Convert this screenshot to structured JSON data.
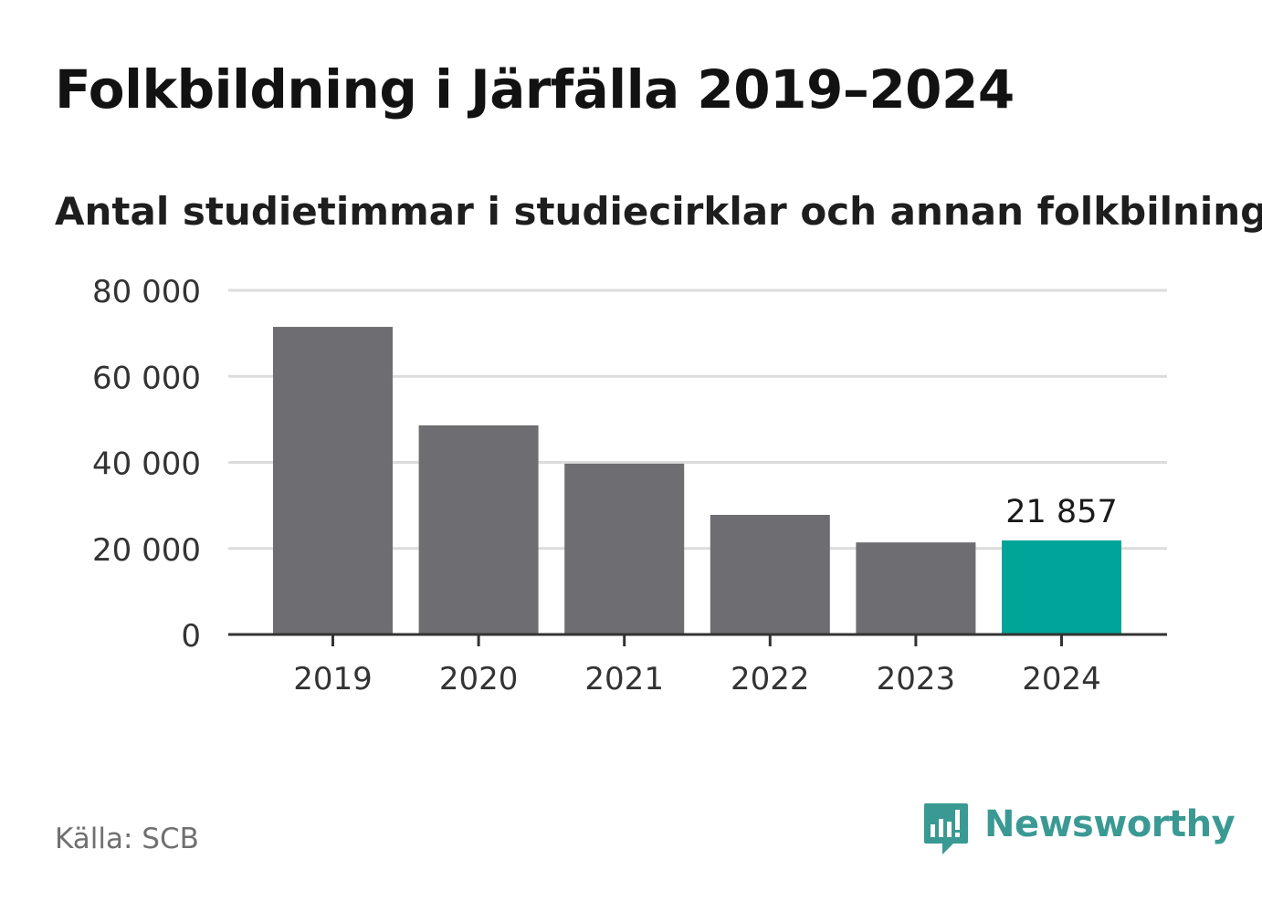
{
  "title": "Folkbildning i Järfälla 2019–2024",
  "subtitle": "Antal studietimmar i studiecirklar och annan folkbilning",
  "source": "Källa: SCB",
  "brand": {
    "name": "Newsworthy",
    "logo_icon": "newsworthy-logo-icon",
    "color": "#3a9a93"
  },
  "colors": {
    "bar": "#6e6d72",
    "highlight": "#00a499",
    "grid": "#dcdcdc",
    "axis": "#333333"
  },
  "chart_data": {
    "type": "bar",
    "categories": [
      "2019",
      "2020",
      "2021",
      "2022",
      "2023",
      "2024"
    ],
    "values": [
      71500,
      48600,
      39700,
      27800,
      21400,
      21857
    ],
    "highlight_index": 5,
    "data_labels": [
      {
        "index": 5,
        "text": "21 857"
      }
    ],
    "y_ticks": [
      {
        "value": 0,
        "label": "0"
      },
      {
        "value": 20000,
        "label": "20 000"
      },
      {
        "value": 40000,
        "label": "40 000"
      },
      {
        "value": 60000,
        "label": "60 000"
      },
      {
        "value": 80000,
        "label": "80 000"
      }
    ],
    "ylim": [
      0,
      80000
    ],
    "grid": true,
    "xlabel": "",
    "ylabel": ""
  }
}
